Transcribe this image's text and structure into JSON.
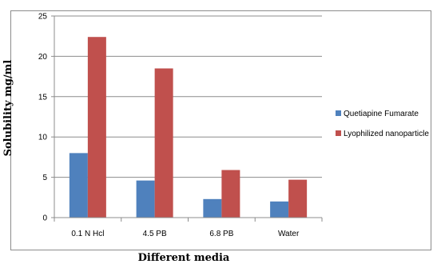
{
  "chart_data": {
    "type": "bar",
    "categories": [
      "0.1 N Hcl",
      "4.5 PB",
      "6.8 PB",
      "Water"
    ],
    "series": [
      {
        "name": "Quetiapine Fumarate",
        "values": [
          8.0,
          4.6,
          2.3,
          2.0
        ],
        "color": "#4f81bd"
      },
      {
        "name": "Lyophilized nanoparticle",
        "values": [
          22.4,
          18.5,
          5.9,
          4.7
        ],
        "color": "#c0504d"
      }
    ],
    "title": "",
    "xlabel": "Different media",
    "ylabel": "Solubility mg/ml",
    "ylim": [
      0,
      25
    ],
    "yticks": [
      0,
      5,
      10,
      15,
      20,
      25
    ],
    "grid": true,
    "legend_position": "right"
  }
}
